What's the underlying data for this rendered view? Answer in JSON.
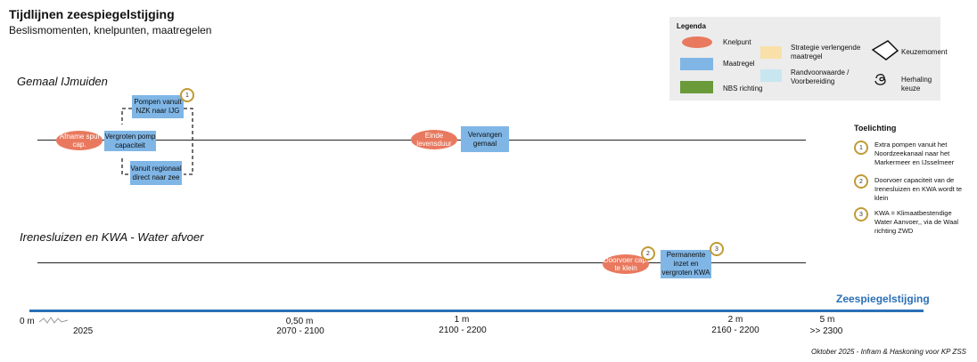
{
  "header": {
    "title": "Tijdlijnen zeespiegelstijging",
    "subtitle": "Beslismomenten, knelpunten, maatregelen"
  },
  "legend": {
    "title": "Legenda",
    "knelpunt": "Knelpunt",
    "maatregel": "Maatregel",
    "nbs": "NBS richting",
    "strategie": "Strategie verlengende maatregel",
    "randvoorwaarde": "Randvoorwaarde / Voorbereiding",
    "keuzemoment": "Keuzemoment",
    "herhaling": "Herhaling keuze",
    "colors": {
      "knelpunt": "#e9795e",
      "maatregel": "#7fb6e6",
      "nbs": "#6a9a3a",
      "strategie": "#f9e0a8",
      "randvoorwaarde": "#c8e6f0"
    }
  },
  "lane1": {
    "title": "Gemaal IJmuiden",
    "afname": "Afname spui cap.",
    "vergroten": "Vergroten pomp capaciteit",
    "pompen": "Pompen vanuit NZK naar IJG",
    "vanuit": "Vanuit regionaal direct naar zee",
    "einde": "Einde levensduur",
    "vervangen": "Vervangen gemaal",
    "badge1": "1"
  },
  "lane2": {
    "title": "Irenesluizen en KWA - Water afvoer",
    "doorvoer": "Doorvoer cap. te klein",
    "permanente": "Permanente inzet en vergroten KWA",
    "badge2": "2",
    "badge3": "3"
  },
  "toelichting": {
    "title": "Toelichting",
    "items": [
      {
        "num": "1",
        "text": "Extra pompen vanuit het Noordzeekanaal naar het Markermeer en IJsselmeer"
      },
      {
        "num": "2",
        "text": "Doorvoer capaciteit van de Irenesluizen en KWA wordt te klein"
      },
      {
        "num": "3",
        "text": "KWA = Klimaatbestendige Water Aanvoer,, via de Waal richting ZWD"
      }
    ]
  },
  "scale": {
    "label": "Zeespiegelstijging",
    "color": "#2a6fb6",
    "ticks": [
      {
        "level": "0 m",
        "period": "2025"
      },
      {
        "level": "0,50 m",
        "period": "2070 - 2100"
      },
      {
        "level": "1 m",
        "period": "2100 - 2200"
      },
      {
        "level": "2 m",
        "period": "2160 - 2200"
      },
      {
        "level": "5 m",
        "period": ">> 2300"
      }
    ]
  },
  "footer": "Oktober 2025 - Infram & Haskoning voor KP ZSS"
}
